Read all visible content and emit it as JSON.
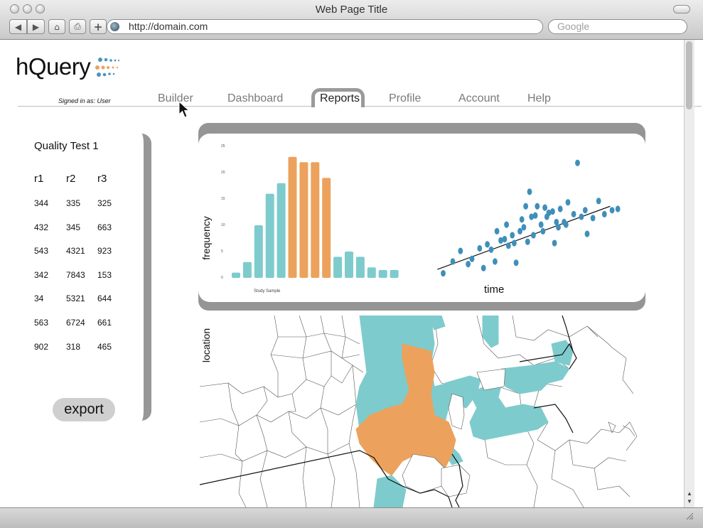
{
  "browser": {
    "title": "Web Page Title",
    "url": "http://domain.com",
    "search_placeholder": "Google",
    "buttons": {
      "back": "◀",
      "forward": "▶",
      "home": "⌂",
      "print": "⎙",
      "add": "+"
    }
  },
  "app": {
    "logo_text": "hQuery",
    "signed_in": "Signed in as: User"
  },
  "nav": {
    "builder": "Builder",
    "dashboard": "Dashboard",
    "reports": "Reports",
    "profile": "Profile",
    "account": "Account",
    "help": "Help"
  },
  "table": {
    "title": "Quality Test 1",
    "headers": [
      "r1",
      "r2",
      "r3"
    ],
    "rows": [
      [
        "344",
        "335",
        "325"
      ],
      [
        "432",
        "345",
        "663"
      ],
      [
        "543",
        "4321",
        "923"
      ],
      [
        "342",
        "7843",
        "153"
      ],
      [
        "34",
        "5321",
        "644"
      ],
      [
        "563",
        "6724",
        "661"
      ],
      [
        "902",
        "318",
        "465"
      ]
    ],
    "export_label": "export"
  },
  "chart_data": [
    {
      "type": "bar",
      "ylabel": "frequency",
      "xlabel": "Study Sample",
      "yticks": [
        "25",
        "20",
        "15",
        "10",
        "5",
        "0"
      ],
      "ylim": [
        0,
        25
      ],
      "values": [
        1,
        3,
        10,
        16,
        18,
        23,
        22,
        22,
        19,
        4,
        5,
        4,
        2,
        1.5,
        1.5
      ],
      "highlight_indices": [
        5,
        6,
        7,
        8
      ],
      "colors": {
        "base": "#7ecbcd",
        "highlight": "#eca25c"
      }
    },
    {
      "type": "scatter",
      "xlabel": "time",
      "color": "#3f8fb9",
      "trendline": true,
      "points": [
        [
          0.5,
          0.4
        ],
        [
          1,
          1.3
        ],
        [
          1.4,
          2.1
        ],
        [
          1.8,
          1.1
        ],
        [
          2,
          1.5
        ],
        [
          2.4,
          2.3
        ],
        [
          2.6,
          0.8
        ],
        [
          2.8,
          2.6
        ],
        [
          3,
          2.2
        ],
        [
          3.2,
          1.3
        ],
        [
          3.3,
          3.6
        ],
        [
          3.5,
          2.9
        ],
        [
          3.7,
          3.0
        ],
        [
          3.8,
          4.1
        ],
        [
          3.9,
          2.5
        ],
        [
          4.1,
          3.3
        ],
        [
          4.2,
          2.7
        ],
        [
          4.3,
          1.2
        ],
        [
          4.5,
          3.6
        ],
        [
          4.6,
          4.5
        ],
        [
          4.7,
          3.9
        ],
        [
          4.8,
          5.5
        ],
        [
          4.9,
          2.8
        ],
        [
          5.0,
          6.6
        ],
        [
          5.1,
          4.7
        ],
        [
          5.2,
          3.3
        ],
        [
          5.3,
          4.8
        ],
        [
          5.4,
          5.5
        ],
        [
          5.6,
          4.1
        ],
        [
          5.7,
          3.6
        ],
        [
          5.8,
          5.4
        ],
        [
          5.9,
          4.7
        ],
        [
          6.0,
          5.0
        ],
        [
          6.2,
          5.1
        ],
        [
          6.3,
          2.7
        ],
        [
          6.4,
          4.3
        ],
        [
          6.5,
          3.9
        ],
        [
          6.6,
          5.3
        ],
        [
          6.8,
          4.3
        ],
        [
          6.9,
          4.1
        ],
        [
          7.0,
          5.8
        ],
        [
          7.3,
          4.9
        ],
        [
          7.5,
          8.8
        ],
        [
          7.7,
          4.7
        ],
        [
          7.9,
          5.2
        ],
        [
          8.0,
          3.4
        ],
        [
          8.3,
          4.6
        ],
        [
          8.6,
          5.9
        ],
        [
          8.9,
          4.9
        ],
        [
          9.3,
          5.2
        ],
        [
          9.6,
          5.3
        ]
      ],
      "trend": {
        "x": [
          0.2,
          9.2
        ],
        "y": [
          0.7,
          5.5
        ]
      }
    }
  ],
  "map": {
    "label": "location",
    "colors": {
      "teal": "#7ecbcd",
      "orange": "#eca25c",
      "outline": "#555"
    }
  }
}
